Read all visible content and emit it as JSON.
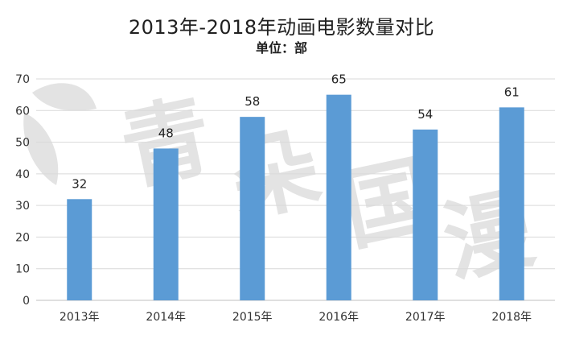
{
  "chart_data": {
    "type": "bar",
    "title": "2013年-2018年动画电影数量对比",
    "subtitle": "单位：部",
    "categories": [
      "2013年",
      "2014年",
      "2015年",
      "2016年",
      "2017年",
      "2018年"
    ],
    "values": [
      32,
      48,
      58,
      65,
      54,
      61
    ],
    "ylim": [
      0,
      70
    ],
    "yticks": [
      0,
      10,
      20,
      30,
      40,
      50,
      60,
      70
    ],
    "grid": true,
    "legend": "none",
    "bar_color": "#5b9bd5",
    "xlabel": "",
    "ylabel": ""
  },
  "watermark": {
    "text": "青朵国漫",
    "color": "#e3e3e3"
  }
}
